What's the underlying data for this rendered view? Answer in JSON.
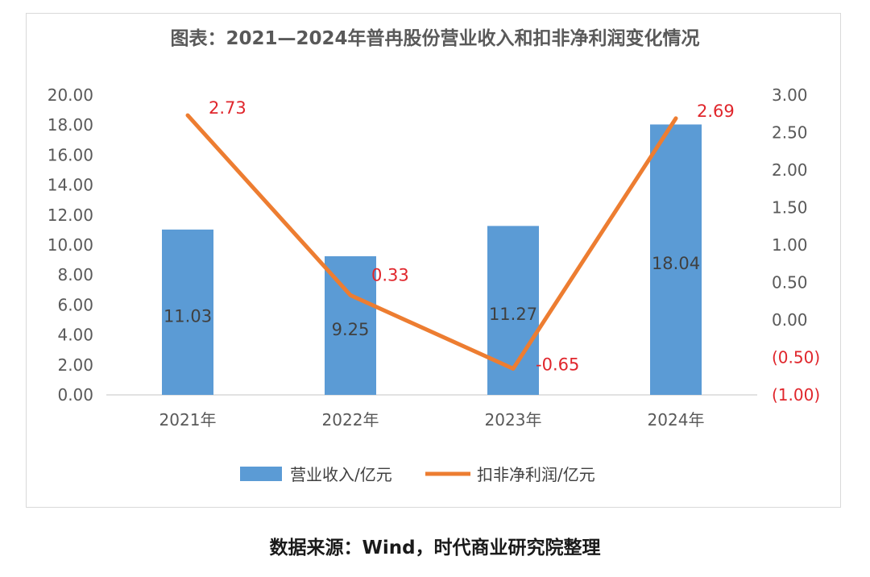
{
  "source_note": "数据来源：Wind，时代商业研究院整理",
  "colors": {
    "bar": "#5b9bd5",
    "line": "#ed7d31",
    "label_red": "#e0262c",
    "text": "#595959"
  },
  "chart_data": {
    "type": "bar+line",
    "title": "图表：2021—2024年普冉股份营业收入和扣非净利润变化情况",
    "categories": [
      "2021年",
      "2022年",
      "2023年",
      "2024年"
    ],
    "series": [
      {
        "name": "营业收入/亿元",
        "type": "bar",
        "axis": "left",
        "values": [
          11.03,
          9.25,
          11.27,
          18.04
        ],
        "labels": [
          "11.03",
          "9.25",
          "11.27",
          "18.04"
        ]
      },
      {
        "name": "扣非净利润/亿元",
        "type": "line",
        "axis": "right",
        "values": [
          2.73,
          0.33,
          -0.65,
          2.69
        ],
        "labels": [
          "2.73",
          "0.33",
          "-0.65",
          "2.69"
        ]
      }
    ],
    "left_axis": {
      "ylim": [
        0,
        20
      ],
      "ticks": [
        "0.00",
        "2.00",
        "4.00",
        "6.00",
        "8.00",
        "10.00",
        "12.00",
        "14.00",
        "16.00",
        "18.00",
        "20.00"
      ]
    },
    "right_axis": {
      "ylim": [
        -1,
        3
      ],
      "ticks": [
        "(1.00)",
        "(0.50)",
        "0.00",
        "0.50",
        "1.00",
        "1.50",
        "2.00",
        "2.50",
        "3.00"
      ]
    },
    "legend_position": "bottom",
    "grid": false
  }
}
